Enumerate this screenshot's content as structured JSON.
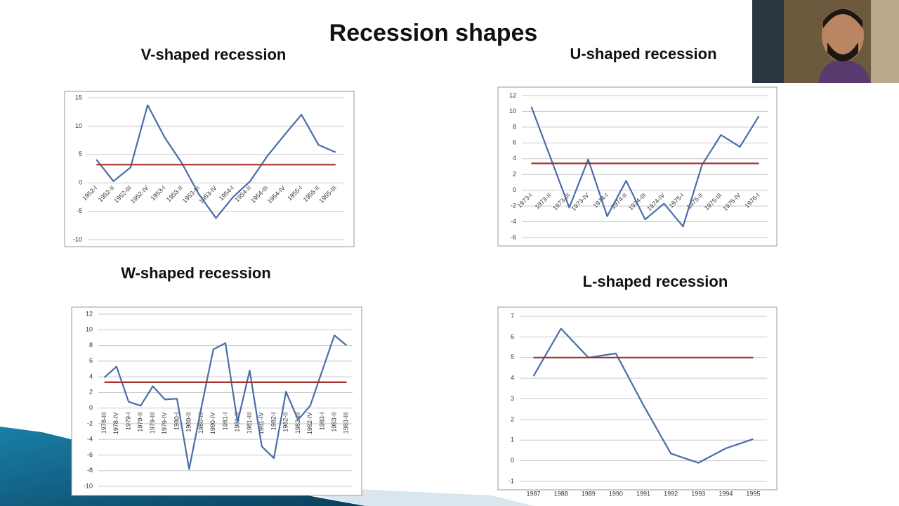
{
  "title": "Recession shapes",
  "chart_data": [
    {
      "type": "line",
      "title": "V-shaped recession",
      "categories": [
        "1952-I",
        "1952-II",
        "1952-III",
        "1952-IV",
        "1953-I",
        "1953-II",
        "1953-III",
        "1953-IV",
        "1954-I",
        "1954-II",
        "1954-III",
        "1954-IV",
        "1955-I",
        "1955-II",
        "1955-III"
      ],
      "series": [
        {
          "color": "#4a6da7",
          "values": [
            4.1,
            0.3,
            2.7,
            13.7,
            8.0,
            3.5,
            -2.0,
            -6.2,
            -2.5,
            0.3,
            4.7,
            8.4,
            12.0,
            6.7,
            5.4
          ]
        },
        {
          "color": "#a3302b",
          "values": [
            3.2,
            3.2,
            3.2,
            3.2,
            3.2,
            3.2,
            3.2,
            3.2,
            3.2,
            3.2,
            3.2,
            3.2,
            3.2,
            3.2,
            3.2
          ]
        }
      ],
      "ylim": [
        -10,
        15
      ],
      "yticks": [
        -10,
        -5,
        0,
        5,
        10,
        15
      ],
      "grid": true
    },
    {
      "type": "line",
      "title": "U-shaped recession",
      "categories": [
        "1973-I",
        "1973-II",
        "1973-III",
        "1973-IV",
        "1974-I",
        "1974-II",
        "1974-III",
        "1974-IV",
        "1975-I",
        "1975-II",
        "1975-III",
        "1975-IV",
        "1976-I"
      ],
      "series": [
        {
          "color": "#4a6da7",
          "values": [
            10.6,
            4.2,
            -2.2,
            3.9,
            -3.3,
            1.2,
            -3.7,
            -1.7,
            -4.6,
            3.2,
            7.0,
            5.5,
            9.4
          ]
        },
        {
          "color": "#a3302b",
          "values": [
            3.4,
            3.4,
            3.4,
            3.4,
            3.4,
            3.4,
            3.4,
            3.4,
            3.4,
            3.4,
            3.4,
            3.4,
            3.4
          ]
        }
      ],
      "ylim": [
        -6,
        12
      ],
      "yticks": [
        -6,
        -4,
        -2,
        0,
        2,
        4,
        6,
        8,
        10,
        12
      ],
      "grid": true
    },
    {
      "type": "line",
      "title": "W-shaped recession",
      "categories": [
        "1978-III",
        "1978-IV",
        "1979-I",
        "1979-II",
        "1979-III",
        "1979-IV",
        "1980-I",
        "1980-II",
        "1980-III",
        "1980-IV",
        "1981-I",
        "1981-II",
        "1981-III",
        "1981-IV",
        "1982-I",
        "1982-II",
        "1982-III",
        "1982-IV",
        "1983-I",
        "1983-II",
        "1983-III"
      ],
      "series": [
        {
          "color": "#4a6da7",
          "values": [
            3.9,
            5.3,
            0.8,
            0.3,
            2.8,
            1.1,
            1.2,
            -7.8,
            0.0,
            7.5,
            8.3,
            -1.8,
            4.8,
            -4.9,
            -6.4,
            2.1,
            -1.5,
            0.3,
            4.8,
            9.3,
            8.0
          ]
        },
        {
          "color": "#a3302b",
          "values": [
            3.3,
            3.3,
            3.3,
            3.3,
            3.3,
            3.3,
            3.3,
            3.3,
            3.3,
            3.3,
            3.3,
            3.3,
            3.3,
            3.3,
            3.3,
            3.3,
            3.3,
            3.3,
            3.3,
            3.3,
            3.3
          ]
        }
      ],
      "ylim": [
        -10,
        12
      ],
      "yticks": [
        -10,
        -8,
        -6,
        -4,
        -2,
        0,
        2,
        4,
        6,
        8,
        10,
        12
      ],
      "grid": true
    },
    {
      "type": "line",
      "title": "L-shaped recession",
      "categories": [
        "1987",
        "1988",
        "1989",
        "1990",
        "1991",
        "1992",
        "1993",
        "1994",
        "1995"
      ],
      "series": [
        {
          "color": "#4a6da7",
          "values": [
            4.1,
            6.4,
            5.0,
            5.2,
            2.7,
            0.35,
            -0.1,
            0.6,
            1.05
          ]
        },
        {
          "color": "#a3302b",
          "values": [
            5.0,
            5.0,
            5.0,
            5.0,
            5.0,
            5.0,
            5.0,
            5.0,
            5.0
          ]
        }
      ],
      "ylim": [
        -1,
        7
      ],
      "yticks": [
        -1,
        0,
        1,
        2,
        3,
        4,
        5,
        6,
        7
      ],
      "grid": true
    }
  ]
}
